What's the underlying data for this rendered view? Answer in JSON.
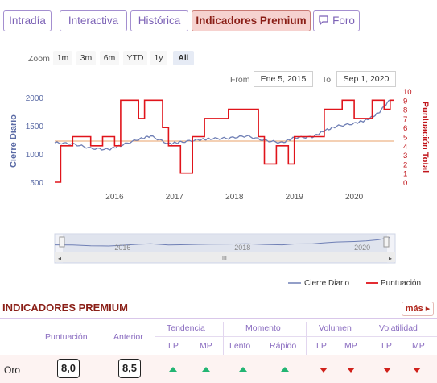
{
  "tabs": [
    {
      "label": "Intradía"
    },
    {
      "label": "Interactiva"
    },
    {
      "label": "Histórica"
    },
    {
      "label": "Indicadores Premium"
    },
    {
      "label": "Foro"
    }
  ],
  "zoom": {
    "label": "Zoom",
    "options": [
      "1m",
      "3m",
      "6m",
      "YTD",
      "1y",
      "All"
    ],
    "selected": "All"
  },
  "range": {
    "from_label": "From",
    "from_value": "Ene 5, 2015",
    "to_label": "To",
    "to_value": "Sep 1, 2020"
  },
  "chart_data": {
    "type": "line",
    "x_ticks": [
      "2016",
      "2017",
      "2018",
      "2019",
      "2020"
    ],
    "y_left_label": "Cierre Diario",
    "y_left_ticks": [
      "2000",
      "1500",
      "1000",
      "500"
    ],
    "y_right_label": "Puntuación Total",
    "y_right_ticks": [
      "10",
      "9",
      "8",
      "7",
      "6",
      "5",
      "4",
      "3",
      "2",
      "1",
      "0"
    ],
    "navigator_ticks": [
      "2016",
      "2018",
      "2020"
    ],
    "series": [
      {
        "name": "Cierre Diario",
        "color": "#6f7fb5",
        "x": [
          2015.0,
          2015.3,
          2015.6,
          2015.9,
          2016.1,
          2016.4,
          2016.6,
          2016.9,
          2017.1,
          2017.4,
          2017.6,
          2017.9,
          2018.2,
          2018.5,
          2018.8,
          2019.0,
          2019.3,
          2019.5,
          2019.7,
          2020.0,
          2020.2,
          2020.4,
          2020.6
        ],
        "values": [
          1200,
          1180,
          1100,
          1080,
          1150,
          1260,
          1320,
          1180,
          1210,
          1250,
          1270,
          1280,
          1320,
          1240,
          1200,
          1290,
          1300,
          1410,
          1490,
          1540,
          1600,
          1720,
          1960
        ]
      },
      {
        "name": "Puntuación",
        "color": "#e0141b",
        "x": [
          2015.0,
          2015.1,
          2015.3,
          2015.6,
          2015.8,
          2016.0,
          2016.1,
          2016.4,
          2016.5,
          2016.8,
          2016.9,
          2017.1,
          2017.3,
          2017.5,
          2017.9,
          2018.2,
          2018.4,
          2018.5,
          2018.7,
          2018.9,
          2019.0,
          2019.4,
          2019.5,
          2019.8,
          2020.0,
          2020.3,
          2020.5,
          2020.6
        ],
        "values": [
          0,
          4,
          5,
          4,
          5,
          4,
          9,
          7,
          9,
          6,
          4,
          1,
          5,
          7,
          8,
          8,
          5,
          2,
          4,
          2,
          5,
          5,
          8,
          9,
          7,
          9,
          8,
          9
        ]
      }
    ],
    "legend": [
      "Cierre Diario",
      "Puntuación"
    ],
    "legend_position": "bottom-right"
  },
  "section": {
    "title": "INDICADORES PREMIUM",
    "more": "más"
  },
  "table": {
    "col_score": "Puntuación",
    "col_prev": "Anterior",
    "groups": [
      "Tendencia",
      "Momento",
      "Volumen",
      "Volatilidad"
    ],
    "subheaders": [
      "LP",
      "MP",
      "Lento",
      "Rápido",
      "LP",
      "MP",
      "LP",
      "MP"
    ],
    "row": {
      "asset": "Oro",
      "score": "8,0",
      "prev": "8,5",
      "signals": [
        "up",
        "up",
        "up",
        "up",
        "down",
        "down",
        "down",
        "down"
      ]
    }
  }
}
